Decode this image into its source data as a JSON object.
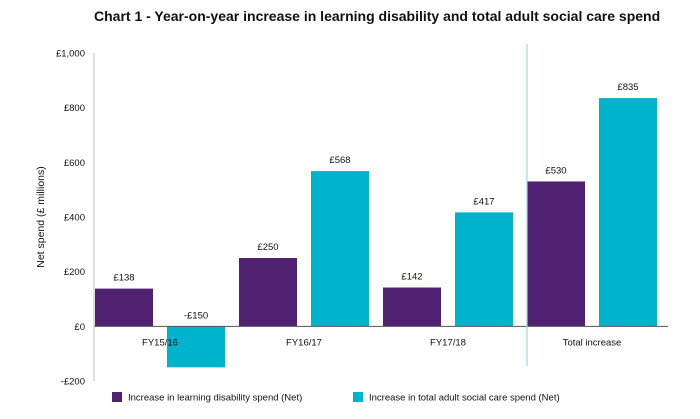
{
  "chart_data": {
    "type": "bar",
    "title": "Chart 1 - Year-on-year increase in learning disability and total adult social care spend",
    "ylabel": "Net spend (£ millions)",
    "xlabel": "",
    "ylim": [
      -200,
      1000
    ],
    "yticks": [
      {
        "value": -200,
        "label": "-£200"
      },
      {
        "value": 0,
        "label": "£0"
      },
      {
        "value": 200,
        "label": "£200"
      },
      {
        "value": 400,
        "label": "£400"
      },
      {
        "value": 600,
        "label": "£600"
      },
      {
        "value": 800,
        "label": "£800"
      },
      {
        "value": 1000,
        "label": "£1,000"
      }
    ],
    "categories": [
      "FY15/16",
      "FY16/17",
      "FY17/18",
      "Total increase"
    ],
    "series": [
      {
        "name": "Increase in learning disability spend (Net)",
        "color": "#4f2170",
        "values": [
          138,
          250,
          142,
          530
        ],
        "labels": [
          "£138",
          "£250",
          "£142",
          "£530"
        ]
      },
      {
        "name": "Increase in total adult social care spend (Net)",
        "color": "#00b3cc",
        "values": [
          -150,
          568,
          417,
          835
        ],
        "labels": [
          "-£150",
          "£568",
          "£417",
          "£835"
        ]
      }
    ],
    "separator_before_category": "Total increase",
    "legend": "bottom",
    "grid": false
  }
}
